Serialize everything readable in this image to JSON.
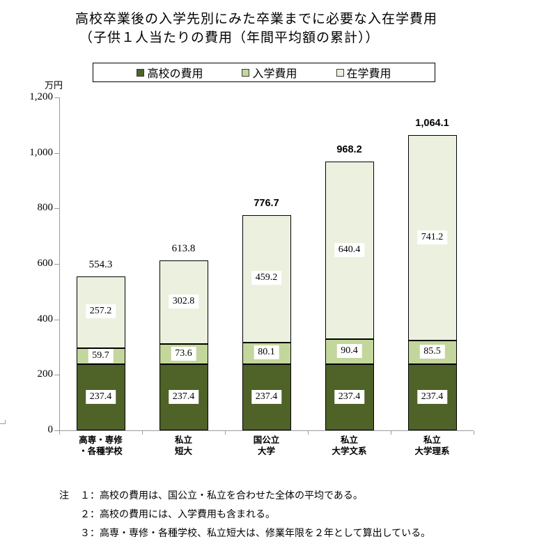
{
  "title": {
    "line1": "高校卒業後の入学先別にみた卒業までに必要な入在学費用",
    "line2": "（子供１人当たりの費用（年間平均額の累計））"
  },
  "y_axis": {
    "unit": "万円",
    "tick_labels": [
      "0",
      "200",
      "400",
      "600",
      "800",
      "1,000",
      "1,200"
    ]
  },
  "chart_data": {
    "type": "bar",
    "stacked": true,
    "title": "高校卒業後の入学先別にみた卒業までに必要な入在学費用（子供１人当たりの費用（年間平均額の累計））",
    "ylabel": "万円",
    "ylim": [
      0,
      1200
    ],
    "ytick_step": 200,
    "grid": false,
    "legend_position": "top",
    "categories": [
      [
        "高専・専修",
        "・各種学校"
      ],
      [
        "私立",
        "短大"
      ],
      [
        "国公立",
        "大学"
      ],
      [
        "私立",
        "大学文系"
      ],
      [
        "私立",
        "大学理系"
      ]
    ],
    "series": [
      {
        "name": "高校の費用",
        "color": "#4f6228",
        "values": [
          237.4,
          237.4,
          237.4,
          237.4,
          237.4
        ]
      },
      {
        "name": "入学費用",
        "color": "#c3d69b",
        "values": [
          59.7,
          73.6,
          80.1,
          90.4,
          85.5
        ]
      },
      {
        "name": "在学費用",
        "color": "#ebf1de",
        "values": [
          257.2,
          302.8,
          459.2,
          640.4,
          741.2
        ]
      }
    ],
    "totals": [
      {
        "label": "554.3",
        "bold": false
      },
      {
        "label": "613.8",
        "bold": false
      },
      {
        "label": "776.7",
        "bold": true
      },
      {
        "label": "968.2",
        "bold": true
      },
      {
        "label": "1,064.1",
        "bold": true
      }
    ]
  },
  "notes": {
    "prefix": "注",
    "items": [
      "１：高校の費用は、国公立・私立を合わせた全体の平均である。",
      "２：高校の費用には、入学費用も含まれる。",
      "３：高専・専修・各種学校、私立短大は、修業年限を２年として算出している。"
    ]
  }
}
